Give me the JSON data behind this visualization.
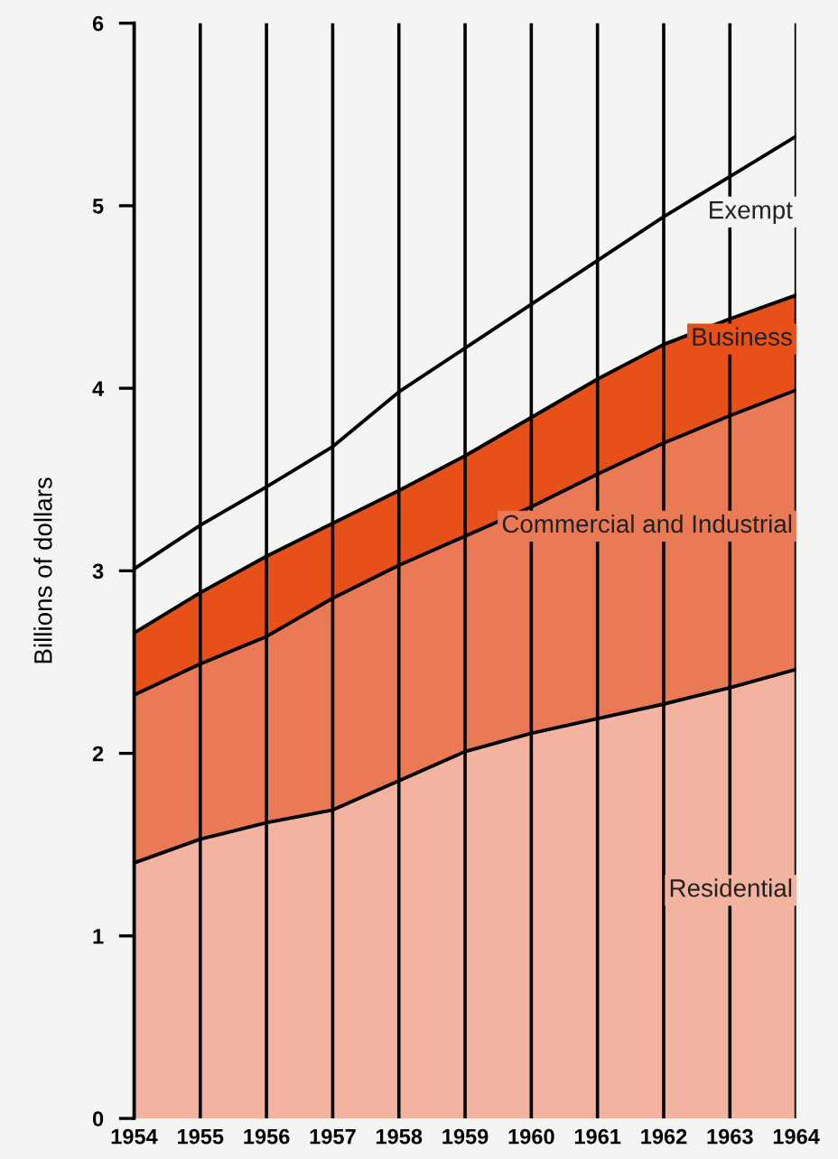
{
  "chart_data": {
    "type": "area",
    "stacked": true,
    "ylabel": "Billions of dollars",
    "x": [
      1954,
      1955,
      1956,
      1957,
      1958,
      1959,
      1960,
      1961,
      1962,
      1963,
      1964
    ],
    "series": [
      {
        "name": "Residential",
        "color": "#f2b4a0",
        "values": [
          1.4,
          1.53,
          1.62,
          1.69,
          1.85,
          2.01,
          2.11,
          2.19,
          2.27,
          2.36,
          2.46
        ]
      },
      {
        "name": "Commercial and Industrial",
        "color": "#ea7a55",
        "values": [
          0.92,
          0.96,
          1.02,
          1.16,
          1.18,
          1.18,
          1.24,
          1.34,
          1.43,
          1.49,
          1.53
        ]
      },
      {
        "name": "Business",
        "color": "#e8501a",
        "values": [
          0.34,
          0.39,
          0.44,
          0.41,
          0.41,
          0.44,
          0.49,
          0.52,
          0.54,
          0.53,
          0.52
        ]
      },
      {
        "name": "Exempt",
        "color": "#f4f4f2",
        "values": [
          0.35,
          0.37,
          0.38,
          0.42,
          0.54,
          0.59,
          0.62,
          0.65,
          0.7,
          0.78,
          0.87
        ]
      }
    ],
    "xlim": [
      1954,
      1964
    ],
    "xticks": [
      1954,
      1955,
      1956,
      1957,
      1958,
      1959,
      1960,
      1961,
      1962,
      1963,
      1964
    ],
    "ylim": [
      0,
      6
    ],
    "yticks": [
      0,
      1,
      2,
      3,
      4,
      5,
      6
    ],
    "grid": "x",
    "legend": false
  }
}
